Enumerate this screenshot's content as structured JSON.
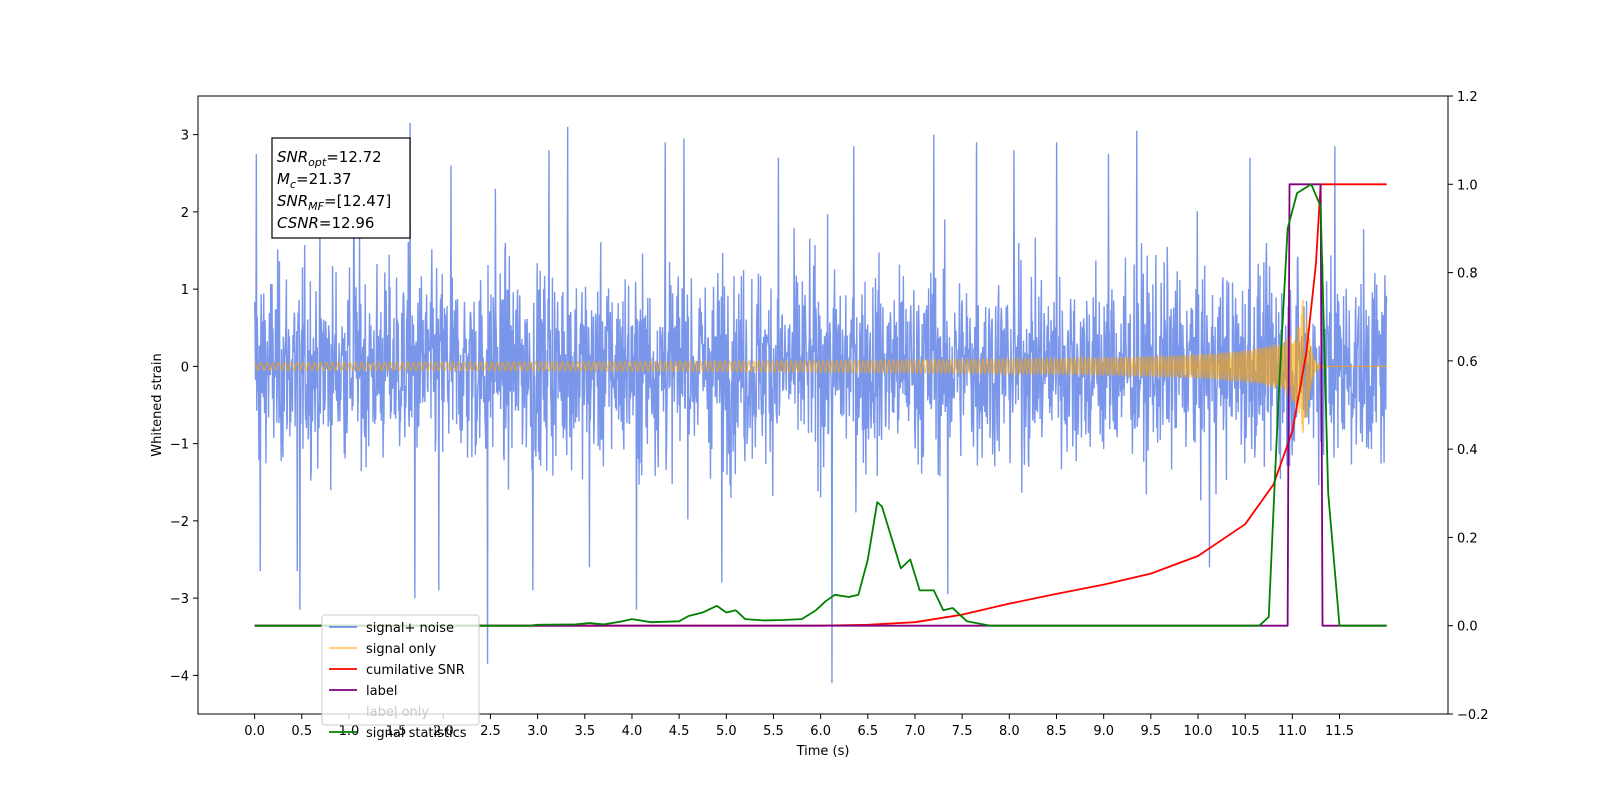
{
  "chart_data": {
    "type": "line",
    "title": "",
    "xlabel": "Time (s)",
    "ylabel": "Whitened strain",
    "y2label": "",
    "xlim": [
      -0.6,
      12.65
    ],
    "ylim": [
      -4.5,
      3.5
    ],
    "y2lim": [
      -0.2,
      1.2
    ],
    "xticks": [
      0.0,
      0.5,
      1.0,
      1.5,
      2.0,
      2.5,
      3.0,
      3.5,
      4.0,
      4.5,
      5.0,
      5.5,
      6.0,
      6.5,
      7.0,
      7.5,
      8.0,
      8.5,
      9.0,
      9.5,
      10.0,
      10.5,
      11.0,
      11.5
    ],
    "xtick_labels": [
      "0.0",
      "0.5",
      "1.0",
      "1.5",
      "2.0",
      "2.5",
      "3.0",
      "3.5",
      "4.0",
      "4.5",
      "5.0",
      "5.5",
      "6.0",
      "6.5",
      "7.0",
      "7.5",
      "8.0",
      "8.5",
      "9.0",
      "9.5",
      "10.0",
      "10.5",
      "11.0",
      "11.5"
    ],
    "yticks": [
      -4,
      -3,
      -2,
      -1,
      0,
      1,
      2,
      3
    ],
    "ytick_labels": [
      "−4",
      "−3",
      "−2",
      "−1",
      "0",
      "1",
      "2",
      "3"
    ],
    "y2ticks": [
      -0.2,
      0.0,
      0.2,
      0.4,
      0.6,
      0.8,
      1.0,
      1.2
    ],
    "y2tick_labels": [
      "−0.2",
      "0.0",
      "0.2",
      "0.4",
      "0.6",
      "0.8",
      "1.0",
      "1.2"
    ],
    "legend_position": "lower-left",
    "grid": false,
    "annotation": [
      {
        "base": "SNR",
        "sub": "opt",
        "value": "=12.72"
      },
      {
        "base": "M",
        "sub": "c",
        "value": "=21.37"
      },
      {
        "base": "SNR",
        "sub": "MF",
        "value": "=[12.47]"
      },
      {
        "base": "CSNR",
        "sub": "",
        "value": "=12.96"
      }
    ],
    "series": [
      {
        "name": "signal+ noise",
        "axis": "left",
        "color": "#4169e1",
        "opacity": 0.7,
        "style": "noise",
        "x_range": [
          0.0,
          12.0
        ],
        "typical_band": [
          -1.7,
          1.7
        ],
        "spikes": [
          {
            "x": 0.02,
            "y": 2.75
          },
          {
            "x": 0.06,
            "y": -2.65
          },
          {
            "x": 0.45,
            "y": -2.65
          },
          {
            "x": 0.48,
            "y": -3.15
          },
          {
            "x": 1.05,
            "y": 2.8
          },
          {
            "x": 1.65,
            "y": 3.15
          },
          {
            "x": 1.7,
            "y": -3.0
          },
          {
            "x": 1.95,
            "y": -2.9
          },
          {
            "x": 2.08,
            "y": 2.6
          },
          {
            "x": 2.47,
            "y": -3.85
          },
          {
            "x": 2.55,
            "y": 2.3
          },
          {
            "x": 2.95,
            "y": -2.9
          },
          {
            "x": 3.12,
            "y": 2.8
          },
          {
            "x": 3.32,
            "y": 3.1
          },
          {
            "x": 3.55,
            "y": -2.6
          },
          {
            "x": 4.05,
            "y": -3.15
          },
          {
            "x": 4.35,
            "y": 2.9
          },
          {
            "x": 4.55,
            "y": 2.95
          },
          {
            "x": 4.95,
            "y": -2.8
          },
          {
            "x": 5.55,
            "y": 2.7
          },
          {
            "x": 6.12,
            "y": -4.1
          },
          {
            "x": 6.35,
            "y": 2.85
          },
          {
            "x": 7.2,
            "y": 3.0
          },
          {
            "x": 7.35,
            "y": -2.95
          },
          {
            "x": 7.65,
            "y": 2.9
          },
          {
            "x": 8.05,
            "y": 2.8
          },
          {
            "x": 8.5,
            "y": 2.9
          },
          {
            "x": 9.05,
            "y": 2.75
          },
          {
            "x": 9.35,
            "y": 3.05
          },
          {
            "x": 10.12,
            "y": -2.6
          },
          {
            "x": 10.55,
            "y": 2.7
          },
          {
            "x": 11.45,
            "y": 2.85
          }
        ]
      },
      {
        "name": "signal only",
        "axis": "left",
        "color": "#ffa500",
        "opacity": 0.6,
        "style": "chirp",
        "x_range": [
          0.0,
          12.0
        ],
        "merger_x": 11.15,
        "peak_amplitude": 1.0
      },
      {
        "name": "cumilative SNR",
        "axis": "right",
        "color": "#ff0000",
        "points": [
          [
            0.0,
            0.0
          ],
          [
            6.0,
            0.0
          ],
          [
            6.5,
            0.002
          ],
          [
            7.0,
            0.008
          ],
          [
            7.5,
            0.025
          ],
          [
            8.0,
            0.05
          ],
          [
            8.5,
            0.072
          ],
          [
            9.0,
            0.093
          ],
          [
            9.5,
            0.118
          ],
          [
            10.0,
            0.158
          ],
          [
            10.5,
            0.23
          ],
          [
            10.8,
            0.32
          ],
          [
            11.0,
            0.44
          ],
          [
            11.15,
            0.62
          ],
          [
            11.25,
            0.82
          ],
          [
            11.3,
            1.0
          ],
          [
            12.0,
            1.0
          ]
        ]
      },
      {
        "name": "label",
        "axis": "right",
        "color": "#800080",
        "points": [
          [
            0.0,
            0.0
          ],
          [
            10.95,
            0.0
          ],
          [
            10.97,
            1.0
          ],
          [
            11.3,
            1.0
          ],
          [
            11.32,
            0.0
          ],
          [
            12.0,
            0.0
          ]
        ]
      },
      {
        "name": "label only",
        "axis": "right",
        "color": "#800080",
        "points": []
      },
      {
        "name": "signal statistics",
        "axis": "right",
        "color": "#008000",
        "points": [
          [
            0.0,
            0.0
          ],
          [
            2.9,
            0.0
          ],
          [
            3.0,
            0.002
          ],
          [
            3.4,
            0.003
          ],
          [
            3.55,
            0.006
          ],
          [
            3.7,
            0.003
          ],
          [
            3.9,
            0.01
          ],
          [
            4.0,
            0.015
          ],
          [
            4.2,
            0.008
          ],
          [
            4.5,
            0.01
          ],
          [
            4.6,
            0.022
          ],
          [
            4.75,
            0.03
          ],
          [
            4.9,
            0.045
          ],
          [
            5.0,
            0.03
          ],
          [
            5.1,
            0.035
          ],
          [
            5.2,
            0.015
          ],
          [
            5.4,
            0.012
          ],
          [
            5.6,
            0.013
          ],
          [
            5.8,
            0.015
          ],
          [
            5.95,
            0.035
          ],
          [
            6.05,
            0.055
          ],
          [
            6.15,
            0.07
          ],
          [
            6.3,
            0.065
          ],
          [
            6.4,
            0.07
          ],
          [
            6.5,
            0.15
          ],
          [
            6.6,
            0.28
          ],
          [
            6.65,
            0.27
          ],
          [
            6.75,
            0.2
          ],
          [
            6.85,
            0.13
          ],
          [
            6.95,
            0.15
          ],
          [
            7.05,
            0.08
          ],
          [
            7.2,
            0.08
          ],
          [
            7.3,
            0.035
          ],
          [
            7.4,
            0.04
          ],
          [
            7.55,
            0.01
          ],
          [
            7.8,
            0.0
          ],
          [
            10.65,
            0.0
          ],
          [
            10.75,
            0.02
          ],
          [
            10.85,
            0.5
          ],
          [
            10.95,
            0.9
          ],
          [
            11.05,
            0.98
          ],
          [
            11.2,
            1.0
          ],
          [
            11.3,
            0.95
          ],
          [
            11.38,
            0.3
          ],
          [
            11.5,
            0.0
          ],
          [
            12.0,
            0.0
          ]
        ]
      }
    ]
  }
}
